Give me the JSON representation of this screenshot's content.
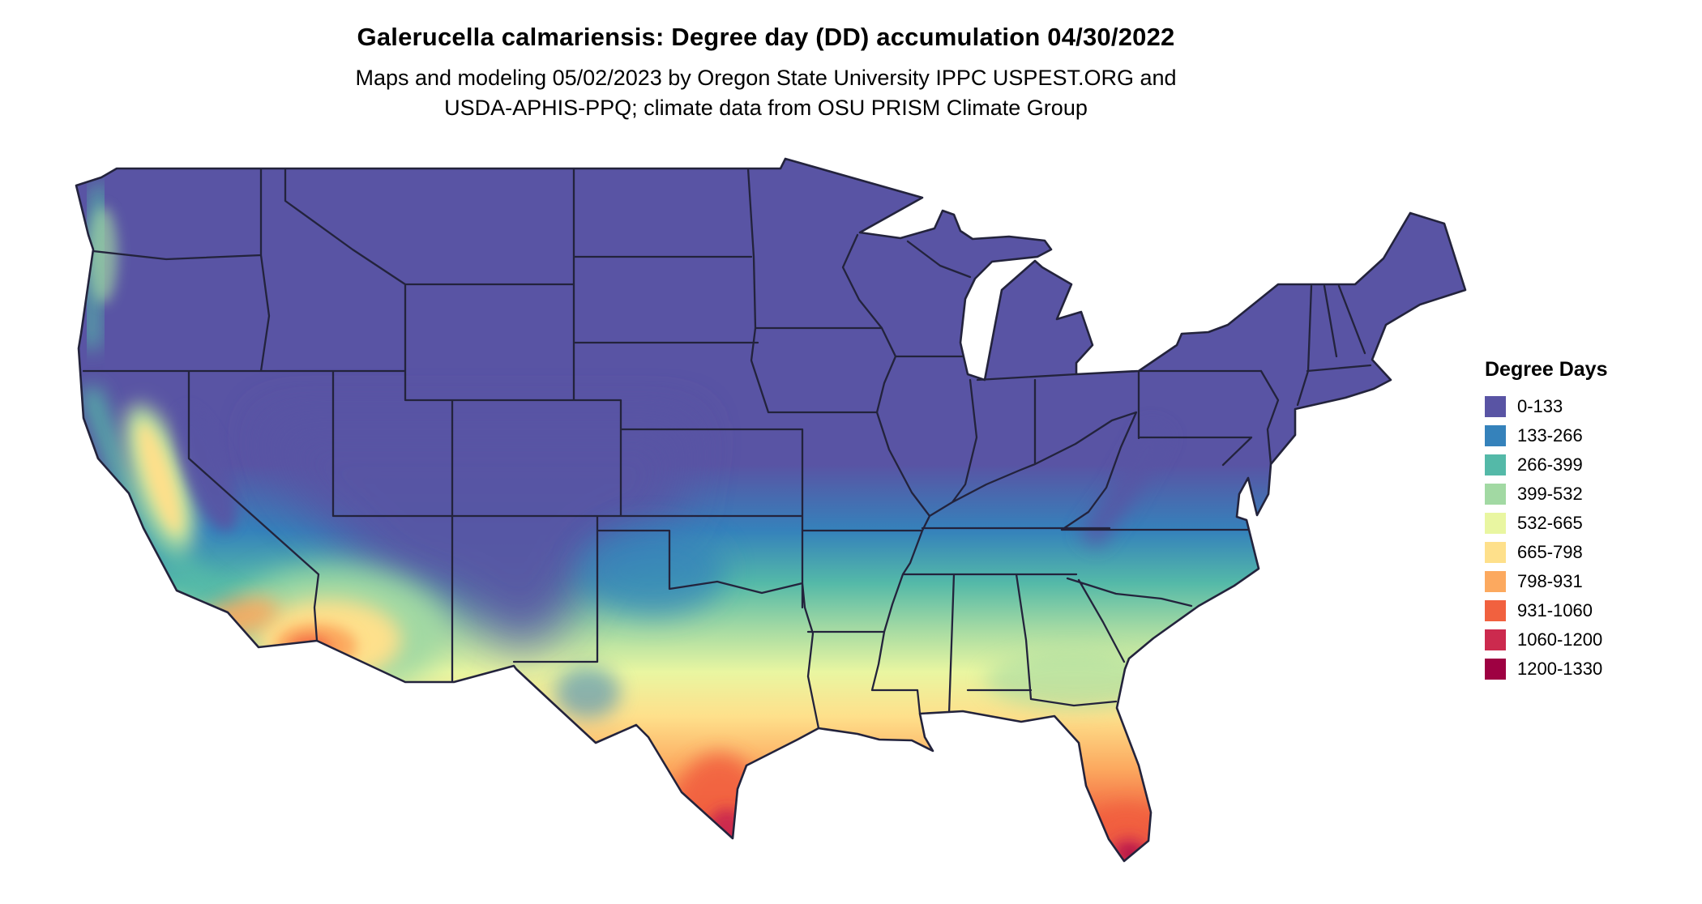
{
  "header": {
    "title": "Galerucella calmariensis: Degree day (DD) accumulation 04/30/2022",
    "subtitle_line1": "Maps and modeling 05/02/2023 by Oregon State University IPPC USPEST.ORG and",
    "subtitle_line2": "USDA-APHIS-PPQ; climate data from OSU PRISM Climate Group"
  },
  "legend": {
    "title": "Degree Days",
    "items": [
      {
        "label": "0-133",
        "color": "#5954A4"
      },
      {
        "label": "133-266",
        "color": "#3582BB"
      },
      {
        "label": "266-399",
        "color": "#54B9A8"
      },
      {
        "label": "399-532",
        "color": "#A2D9A3"
      },
      {
        "label": "532-665",
        "color": "#E9F6A1"
      },
      {
        "label": "665-798",
        "color": "#FEE08B"
      },
      {
        "label": "798-931",
        "color": "#FCA95F"
      },
      {
        "label": "931-1060",
        "color": "#F1613F"
      },
      {
        "label": "1060-1200",
        "color": "#CC2A4E"
      },
      {
        "label": "1200-1330",
        "color": "#9E0142"
      }
    ]
  },
  "chart_data": {
    "type": "heatmap",
    "map_region": "Contiguous United States (state boundaries shown)",
    "species": "Galerucella calmariensis",
    "variable": "Degree day (DD) accumulation",
    "accumulation_date": "04/30/2022",
    "model_date": "05/02/2023",
    "sources": "Oregon State University IPPC USPEST.ORG and USDA-APHIS-PPQ; climate data from OSU PRISM Climate Group",
    "legend_title": "Degree Days",
    "legend_position": "right",
    "bins": [
      {
        "range": "0-133",
        "color": "#5954A4"
      },
      {
        "range": "133-266",
        "color": "#3582BB"
      },
      {
        "range": "266-399",
        "color": "#54B9A8"
      },
      {
        "range": "399-532",
        "color": "#A2D9A3"
      },
      {
        "range": "532-665",
        "color": "#E9F6A1"
      },
      {
        "range": "665-798",
        "color": "#FEE08B"
      },
      {
        "range": "798-931",
        "color": "#FCA95F"
      },
      {
        "range": "931-1060",
        "color": "#F1613F"
      },
      {
        "range": "1060-1200",
        "color": "#CC2A4E"
      },
      {
        "range": "1200-1330",
        "color": "#9E0142"
      }
    ]
  }
}
